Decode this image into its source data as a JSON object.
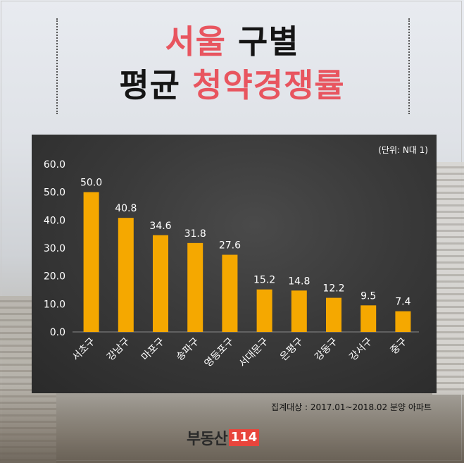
{
  "title": {
    "line1_red": "서울",
    "line1_black": "구별",
    "line2_black": "평균",
    "line2_red": "청약경쟁률"
  },
  "unit_note": "(단위: N대 1)",
  "source_note": "집계대상 : 2017.01~2018.02 분양 아파트",
  "logo": {
    "text": "부동산",
    "number": "114"
  },
  "colors": {
    "bar": "#f5a800",
    "accent": "#e8555f"
  },
  "chart_data": {
    "type": "bar",
    "categories": [
      "서초구",
      "강남구",
      "마포구",
      "송파구",
      "영등포구",
      "서대문구",
      "은평구",
      "강동구",
      "강서구",
      "중구"
    ],
    "values": [
      50.0,
      40.8,
      34.6,
      31.8,
      27.6,
      15.2,
      14.8,
      12.2,
      9.5,
      7.4
    ],
    "value_labels": [
      "50.0",
      "40.8",
      "34.6",
      "31.8",
      "27.6",
      "15.2",
      "14.8",
      "12.2",
      "9.5",
      "7.4"
    ],
    "y_ticks": [
      "0.0",
      "10.0",
      "20.0",
      "30.0",
      "40.0",
      "50.0",
      "60.0"
    ],
    "ylim": [
      0,
      60
    ],
    "grid": false,
    "legend": "none"
  }
}
